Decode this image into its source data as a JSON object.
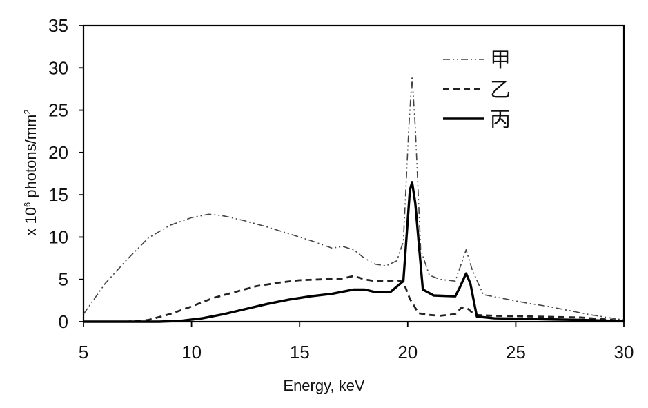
{
  "chart_data": {
    "type": "line",
    "title": "",
    "xlabel": "Energy, keV",
    "ylabel": "x 10⁶ photons/mm²",
    "ylabel_parts": {
      "prefix": "x 10",
      "exp1": "6",
      "middle": " photons/mm",
      "exp2": "2"
    },
    "xlim": [
      5,
      30
    ],
    "ylim": [
      0,
      35
    ],
    "x_ticks": [
      "5",
      "10",
      "15",
      "20",
      "25",
      "30"
    ],
    "y_ticks": [
      "0",
      "5",
      "10",
      "15",
      "20",
      "25",
      "30",
      "35"
    ],
    "grid": false,
    "legend_position": "top-right",
    "series": [
      {
        "name": "甲",
        "style": "dash-dot-dot",
        "color": "#444444",
        "points": [
          [
            5,
            0.9
          ],
          [
            6,
            4.5
          ],
          [
            7,
            7.3
          ],
          [
            8,
            9.9
          ],
          [
            9,
            11.4
          ],
          [
            10,
            12.3
          ],
          [
            10.8,
            12.7
          ],
          [
            11.5,
            12.5
          ],
          [
            12.5,
            11.9
          ],
          [
            13.5,
            11.2
          ],
          [
            14.5,
            10.4
          ],
          [
            15.5,
            9.6
          ],
          [
            16.5,
            8.7
          ],
          [
            17,
            8.9
          ],
          [
            17.5,
            8.5
          ],
          [
            18,
            7.5
          ],
          [
            18.5,
            6.8
          ],
          [
            19,
            6.6
          ],
          [
            19.5,
            7.2
          ],
          [
            19.8,
            9.5
          ],
          [
            20.05,
            23.0
          ],
          [
            20.2,
            29.0
          ],
          [
            20.35,
            23.0
          ],
          [
            20.6,
            8.5
          ],
          [
            21,
            5.5
          ],
          [
            21.5,
            5.0
          ],
          [
            22.2,
            4.8
          ],
          [
            22.5,
            7.0
          ],
          [
            22.7,
            8.5
          ],
          [
            23.0,
            6.0
          ],
          [
            23.5,
            3.2
          ],
          [
            24.5,
            2.7
          ],
          [
            25.5,
            2.2
          ],
          [
            26.5,
            1.8
          ],
          [
            27.5,
            1.3
          ],
          [
            28.5,
            0.8
          ],
          [
            29.5,
            0.4
          ],
          [
            30,
            0.2
          ]
        ]
      },
      {
        "name": "乙",
        "style": "dashed",
        "color": "#222222",
        "points": [
          [
            5,
            0
          ],
          [
            7,
            0
          ],
          [
            8,
            0.2
          ],
          [
            9,
            0.9
          ],
          [
            10,
            1.8
          ],
          [
            11,
            2.8
          ],
          [
            12,
            3.5
          ],
          [
            13,
            4.2
          ],
          [
            14,
            4.6
          ],
          [
            15,
            4.9
          ],
          [
            16,
            5.0
          ],
          [
            17,
            5.1
          ],
          [
            17.5,
            5.4
          ],
          [
            18,
            5.0
          ],
          [
            18.5,
            4.8
          ],
          [
            19,
            4.8
          ],
          [
            19.5,
            4.9
          ],
          [
            19.8,
            4.7
          ],
          [
            20.1,
            2.7
          ],
          [
            20.5,
            1.0
          ],
          [
            21,
            0.8
          ],
          [
            21.5,
            0.7
          ],
          [
            22.2,
            0.9
          ],
          [
            22.5,
            1.7
          ],
          [
            22.8,
            1.5
          ],
          [
            23.1,
            0.8
          ],
          [
            24,
            0.7
          ],
          [
            26,
            0.6
          ],
          [
            28,
            0.5
          ],
          [
            29,
            0.3
          ],
          [
            30,
            0.1
          ]
        ]
      },
      {
        "name": "丙",
        "style": "solid",
        "color": "#000000",
        "points": [
          [
            5,
            0
          ],
          [
            8.5,
            0
          ],
          [
            9.5,
            0.1
          ],
          [
            10.5,
            0.4
          ],
          [
            11.5,
            0.9
          ],
          [
            12.5,
            1.5
          ],
          [
            13.5,
            2.1
          ],
          [
            14.5,
            2.6
          ],
          [
            15.5,
            3.0
          ],
          [
            16.5,
            3.3
          ],
          [
            17.5,
            3.8
          ],
          [
            18,
            3.8
          ],
          [
            18.5,
            3.5
          ],
          [
            19.2,
            3.5
          ],
          [
            19.8,
            4.8
          ],
          [
            20.1,
            15.5
          ],
          [
            20.2,
            16.5
          ],
          [
            20.35,
            14.0
          ],
          [
            20.7,
            3.8
          ],
          [
            21.2,
            3.1
          ],
          [
            22.2,
            3.0
          ],
          [
            22.4,
            4.0
          ],
          [
            22.7,
            5.7
          ],
          [
            22.9,
            4.5
          ],
          [
            23.2,
            0.6
          ],
          [
            24,
            0.4
          ],
          [
            26,
            0.3
          ],
          [
            28,
            0.2
          ],
          [
            29.5,
            0.1
          ],
          [
            30,
            0.05
          ]
        ]
      }
    ]
  }
}
